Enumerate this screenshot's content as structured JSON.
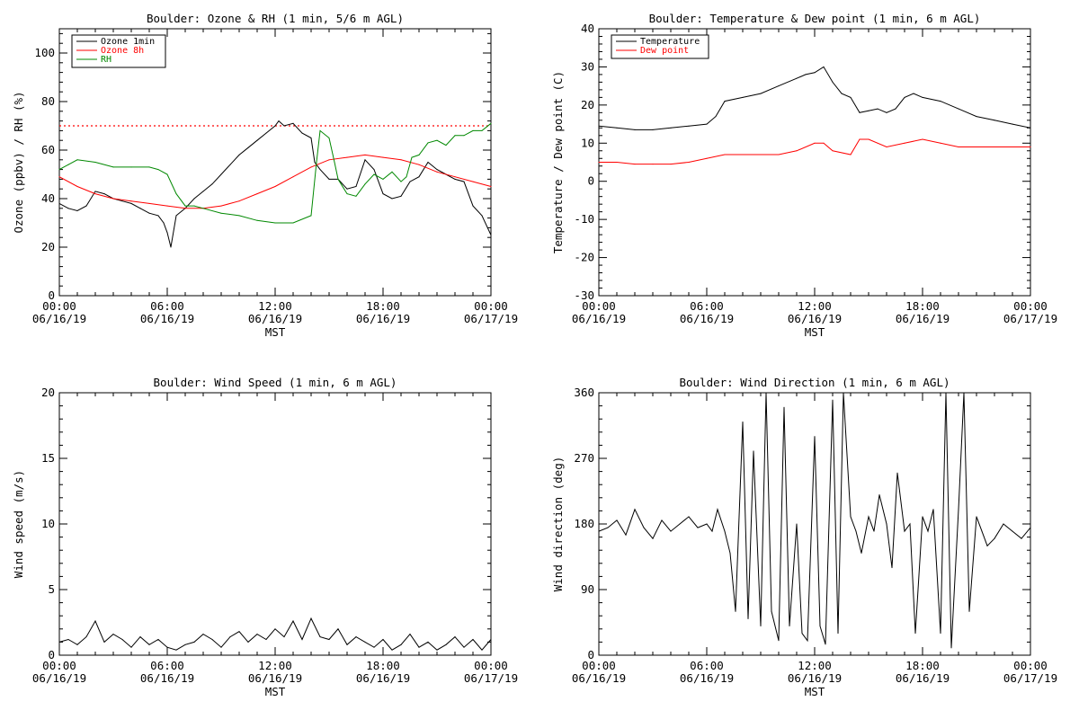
{
  "chart_data": [
    {
      "type": "line",
      "title": "Boulder: Ozone & RH (1 min, 5/6 m AGL)",
      "xlabel": "MST",
      "ylabel": "Ozone (ppbv) / RH (%)",
      "xlim": [
        0,
        24
      ],
      "ylim": [
        0,
        110
      ],
      "yticks": [
        0,
        20,
        40,
        60,
        80,
        100
      ],
      "xticks": [
        {
          "time": "00:00",
          "date": "06/16/19"
        },
        {
          "time": "06:00",
          "date": "06/16/19"
        },
        {
          "time": "12:00",
          "date": "06/16/19"
        },
        {
          "time": "18:00",
          "date": "06/16/19"
        },
        {
          "time": "00:00",
          "date": "06/17/19"
        }
      ],
      "legend_position": "top-left",
      "reference_line": {
        "y": 70,
        "style": "dotted",
        "color": "#ff0000"
      },
      "series": [
        {
          "name": "Ozone 1min",
          "color": "#000000",
          "x": [
            0,
            0.5,
            1,
            1.5,
            2,
            2.5,
            3,
            3.5,
            4,
            4.5,
            5,
            5.5,
            5.8,
            6,
            6.2,
            6.5,
            7,
            7.5,
            8,
            8.5,
            9,
            9.5,
            10,
            10.5,
            11,
            11.5,
            12,
            12.2,
            12.5,
            13,
            13.5,
            14,
            14.2,
            14.5,
            15,
            15.5,
            16,
            16.5,
            17,
            17.5,
            18,
            18.5,
            19,
            19.5,
            20,
            20.5,
            21,
            21.5,
            22,
            22.5,
            23,
            23.5,
            24
          ],
          "y": [
            38,
            36,
            35,
            37,
            43,
            42,
            40,
            39,
            38,
            36,
            34,
            33,
            30,
            26,
            20,
            33,
            36,
            40,
            43,
            46,
            50,
            54,
            58,
            61,
            64,
            67,
            70,
            72,
            70,
            71,
            67,
            65,
            55,
            52,
            48,
            48,
            44,
            45,
            56,
            52,
            42,
            40,
            41,
            47,
            49,
            55,
            52,
            50,
            48,
            47,
            37,
            33,
            25
          ]
        },
        {
          "name": "Ozone 8h",
          "color": "#ff0000",
          "x": [
            0,
            1,
            2,
            3,
            4,
            5,
            6,
            7,
            8,
            9,
            10,
            11,
            12,
            13,
            14,
            15,
            16,
            17,
            18,
            19,
            20,
            21,
            22,
            23,
            24
          ],
          "y": [
            49,
            45,
            42,
            40,
            39,
            38,
            37,
            36,
            36,
            37,
            39,
            42,
            45,
            49,
            53,
            56,
            57,
            58,
            57,
            56,
            54,
            51,
            49,
            47,
            45
          ]
        },
        {
          "name": "RH",
          "color": "#008800",
          "x": [
            0,
            0.5,
            1,
            2,
            3,
            4,
            5,
            5.5,
            6,
            6.5,
            7,
            7.5,
            8,
            9,
            10,
            11,
            12,
            13,
            14,
            14.3,
            14.5,
            15,
            15.3,
            15.5,
            16,
            16.5,
            17,
            17.5,
            18,
            18.5,
            19,
            19.3,
            19.6,
            20,
            20.5,
            21,
            21.5,
            22,
            22.5,
            23,
            23.5,
            24
          ],
          "y": [
            52,
            54,
            56,
            55,
            53,
            53,
            53,
            52,
            50,
            42,
            37,
            37,
            36,
            34,
            33,
            31,
            30,
            30,
            33,
            55,
            68,
            65,
            55,
            48,
            42,
            41,
            46,
            50,
            48,
            51,
            47,
            49,
            57,
            58,
            63,
            64,
            62,
            66,
            66,
            68,
            68,
            71
          ]
        }
      ]
    },
    {
      "type": "line",
      "title": "Boulder: Temperature & Dew point (1 min, 6 m AGL)",
      "xlabel": "MST",
      "ylabel": "Temperature / Dew point (C)",
      "xlim": [
        0,
        24
      ],
      "ylim": [
        -30,
        40
      ],
      "yticks": [
        -30,
        -20,
        -10,
        0,
        10,
        20,
        30,
        40
      ],
      "xticks": [
        {
          "time": "00:00",
          "date": "06/16/19"
        },
        {
          "time": "06:00",
          "date": "06/16/19"
        },
        {
          "time": "12:00",
          "date": "06/16/19"
        },
        {
          "time": "18:00",
          "date": "06/16/19"
        },
        {
          "time": "00:00",
          "date": "06/17/19"
        }
      ],
      "legend_position": "top-left",
      "series": [
        {
          "name": "Temperature",
          "color": "#000000",
          "x": [
            0,
            1,
            2,
            3,
            4,
            5,
            6,
            6.5,
            7,
            8,
            9,
            10,
            11,
            11.5,
            12,
            12.5,
            13,
            13.5,
            14,
            14.5,
            15,
            15.5,
            16,
            16.5,
            17,
            17.5,
            18,
            19,
            20,
            21,
            22,
            23,
            24
          ],
          "y": [
            14.5,
            14,
            13.5,
            13.5,
            14,
            14.5,
            15,
            17,
            21,
            22,
            23,
            25,
            27,
            28,
            28.5,
            30,
            26,
            23,
            22,
            18,
            18.5,
            19,
            18,
            19,
            22,
            23,
            22,
            21,
            19,
            17,
            16,
            15,
            14
          ]
        },
        {
          "name": "Dew point",
          "color": "#ff0000",
          "x": [
            0,
            1,
            2,
            3,
            4,
            5,
            6,
            7,
            8,
            9,
            10,
            11,
            12,
            12.5,
            13,
            14,
            14.5,
            15,
            16,
            17,
            18,
            19,
            20,
            21,
            22,
            23,
            24
          ],
          "y": [
            5,
            5,
            4.5,
            4.5,
            4.5,
            5,
            6,
            7,
            7,
            7,
            7,
            8,
            10,
            10,
            8,
            7,
            11,
            11,
            9,
            10,
            11,
            10,
            9,
            9,
            9,
            9,
            9
          ]
        }
      ]
    },
    {
      "type": "line",
      "title": "Boulder: Wind Speed (1 min, 6 m AGL)",
      "xlabel": "MST",
      "ylabel": "Wind speed (m/s)",
      "xlim": [
        0,
        24
      ],
      "ylim": [
        0,
        20
      ],
      "yticks": [
        0,
        5,
        10,
        15,
        20
      ],
      "xticks": [
        {
          "time": "00:00",
          "date": "06/16/19"
        },
        {
          "time": "06:00",
          "date": "06/16/19"
        },
        {
          "time": "12:00",
          "date": "06/16/19"
        },
        {
          "time": "18:00",
          "date": "06/16/19"
        },
        {
          "time": "00:00",
          "date": "06/17/19"
        }
      ],
      "series": [
        {
          "color": "#000000",
          "x": [
            0,
            0.5,
            1,
            1.5,
            2,
            2.5,
            3,
            3.5,
            4,
            4.5,
            5,
            5.5,
            6,
            6.5,
            7,
            7.5,
            8,
            8.5,
            9,
            9.5,
            10,
            10.5,
            11,
            11.5,
            12,
            12.5,
            13,
            13.5,
            14,
            14.5,
            15,
            15.5,
            16,
            16.5,
            17,
            17.5,
            18,
            18.5,
            19,
            19.5,
            20,
            20.5,
            21,
            21.5,
            22,
            22.5,
            23,
            23.5,
            24
          ],
          "y": [
            1.0,
            1.2,
            0.8,
            1.4,
            2.6,
            1.0,
            1.6,
            1.2,
            0.6,
            1.4,
            0.8,
            1.2,
            0.6,
            0.4,
            0.8,
            1.0,
            1.6,
            1.2,
            0.6,
            1.4,
            1.8,
            1.0,
            1.6,
            1.2,
            2.0,
            1.4,
            2.6,
            1.2,
            2.8,
            1.4,
            1.2,
            2.0,
            0.8,
            1.4,
            1.0,
            0.6,
            1.2,
            0.4,
            0.8,
            1.6,
            0.6,
            1.0,
            0.4,
            0.8,
            1.4,
            0.6,
            1.2,
            0.4,
            1.2
          ]
        }
      ]
    },
    {
      "type": "line",
      "title": "Boulder: Wind Direction (1 min, 6 m AGL)",
      "xlabel": "MST",
      "ylabel": "Wind direction (deg)",
      "xlim": [
        0,
        24
      ],
      "ylim": [
        0,
        360
      ],
      "yticks": [
        0,
        90,
        180,
        270,
        360
      ],
      "xticks": [
        {
          "time": "00:00",
          "date": "06/16/19"
        },
        {
          "time": "06:00",
          "date": "06/16/19"
        },
        {
          "time": "12:00",
          "date": "06/16/19"
        },
        {
          "time": "18:00",
          "date": "06/16/19"
        },
        {
          "time": "00:00",
          "date": "06/17/19"
        }
      ],
      "series": [
        {
          "color": "#000000",
          "x": [
            0,
            0.5,
            1,
            1.5,
            2,
            2.5,
            3,
            3.5,
            4,
            4.5,
            5,
            5.5,
            6,
            6.3,
            6.6,
            7,
            7.3,
            7.6,
            8,
            8.3,
            8.6,
            9,
            9.3,
            9.6,
            10,
            10.3,
            10.6,
            11,
            11.3,
            11.6,
            12,
            12.3,
            12.6,
            13,
            13.3,
            13.6,
            14,
            14.3,
            14.6,
            15,
            15.3,
            15.6,
            16,
            16.3,
            16.6,
            17,
            17.3,
            17.6,
            18,
            18.3,
            18.6,
            19,
            19.3,
            19.6,
            20,
            20.3,
            20.6,
            21,
            21.3,
            21.6,
            22,
            22.5,
            23,
            23.5,
            24
          ],
          "y": [
            170,
            175,
            185,
            165,
            200,
            175,
            160,
            185,
            170,
            180,
            190,
            175,
            180,
            170,
            200,
            170,
            140,
            60,
            320,
            50,
            280,
            40,
            360,
            60,
            20,
            340,
            40,
            180,
            30,
            20,
            300,
            40,
            15,
            350,
            30,
            360,
            190,
            170,
            140,
            190,
            170,
            220,
            180,
            120,
            250,
            170,
            180,
            30,
            190,
            170,
            200,
            30,
            360,
            10,
            200,
            360,
            60,
            190,
            170,
            150,
            160,
            180,
            170,
            160,
            175
          ]
        }
      ]
    }
  ]
}
